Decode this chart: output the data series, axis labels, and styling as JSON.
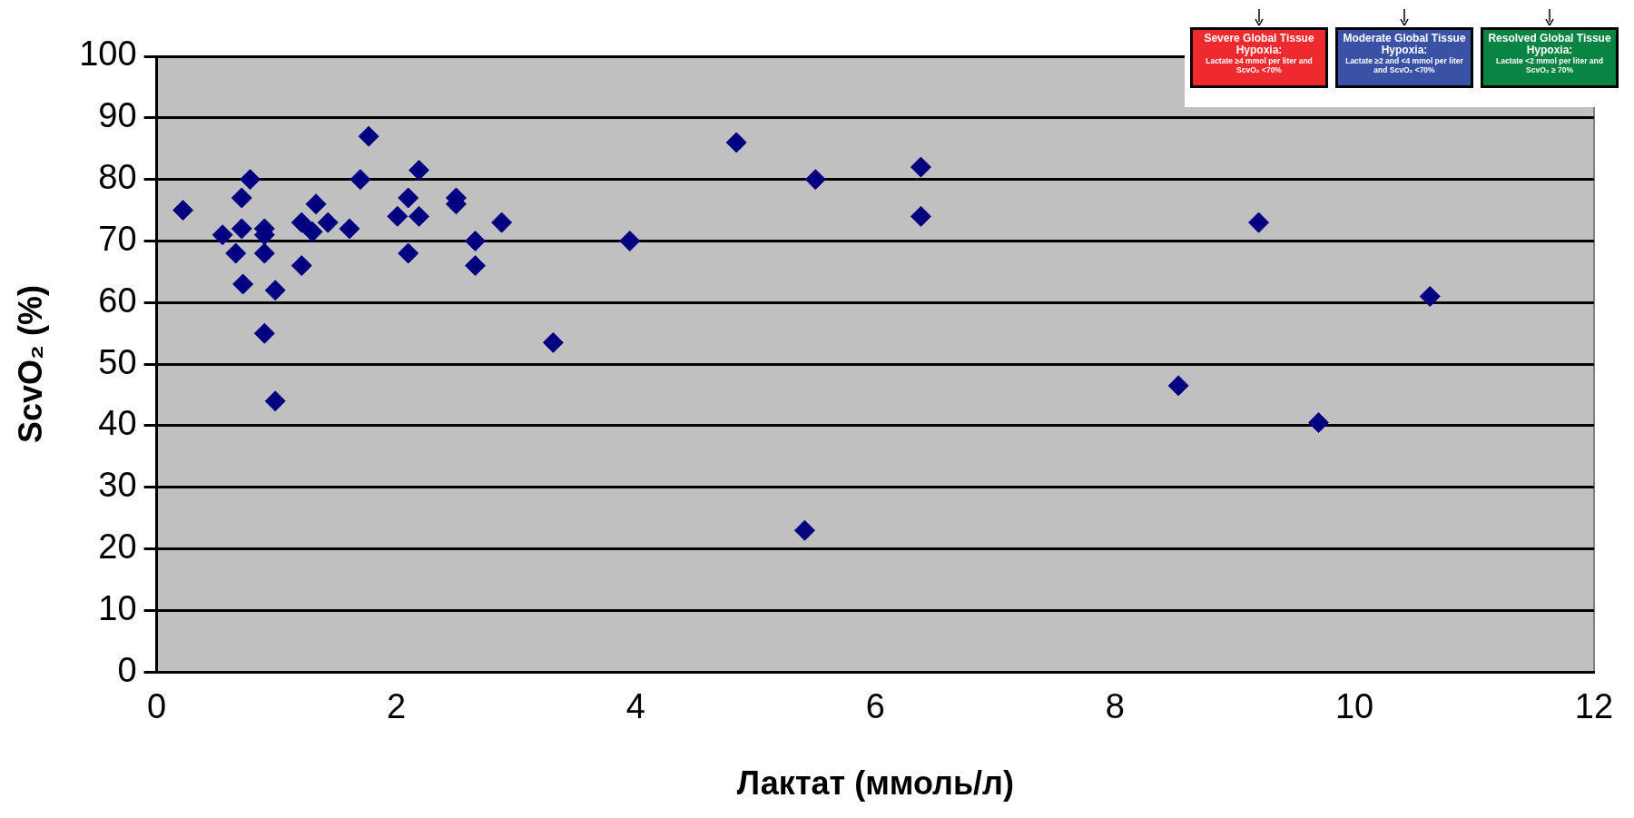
{
  "chart_data": {
    "type": "scatter",
    "xlabel": "Лактат (ммоль/л)",
    "ylabel": "ScvO₂ (%)",
    "annotations": [
      "Severe Global Tissue Hypoxia:",
      "Lactate ≥4 mmol per liter and ScvO₂ <70%",
      "Moderate Global Tissue Hypoxia:",
      "Lactate ≥2 and <4 mmol per liter and ScvO₂ <70%",
      "Resolved Global Tissue Hypoxia:",
      "Lactate <2 mmol per liter and ScvO₂ ≥ 70%"
    ],
    "x": [
      0.22,
      0.55,
      0.66,
      0.71,
      0.71,
      0.72,
      0.78,
      0.9,
      0.9,
      0.9,
      0.9,
      0.99,
      0.99,
      1.21,
      1.21,
      1.3,
      1.33,
      1.43,
      1.61,
      1.7,
      1.77,
      2.01,
      2.1,
      2.1,
      2.19,
      2.19,
      2.5,
      2.5,
      2.66,
      2.66,
      2.88,
      3.31,
      3.95,
      4.84,
      5.41,
      5.5,
      6.38,
      6.38,
      8.53,
      9.2,
      9.7,
      10.63
    ],
    "series": [
      {
        "color": "#000080",
        "values": [
          75,
          71,
          68,
          72,
          77,
          63,
          80,
          72,
          71,
          68,
          55,
          62,
          44,
          66,
          73,
          71.5,
          76,
          73,
          72,
          80,
          87,
          74,
          77,
          68,
          81.5,
          74,
          77,
          76,
          70,
          66,
          73,
          53.5,
          70,
          86,
          23,
          80,
          82,
          74,
          46.5,
          73,
          40.5,
          61
        ]
      }
    ],
    "xlim": [
      0,
      12
    ],
    "xticks": [
      0,
      2,
      4,
      6,
      8,
      10,
      12
    ],
    "ylim": [
      0,
      100
    ],
    "yticks": [
      0,
      10,
      20,
      30,
      40,
      50,
      60,
      70,
      80,
      90,
      100
    ],
    "grid": "y",
    "legend": false,
    "marker": "diamond"
  }
}
